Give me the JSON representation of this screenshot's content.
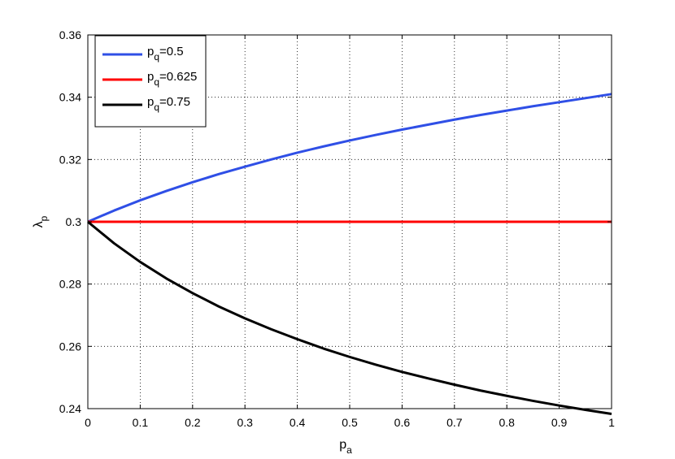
{
  "chart_data": {
    "type": "line",
    "xlabel": {
      "main": "p",
      "sub": "a"
    },
    "ylabel": {
      "main": "λ",
      "sub": "p"
    },
    "xlim": [
      0,
      1
    ],
    "ylim": [
      0.24,
      0.36
    ],
    "x_ticks": [
      "0",
      "0.1",
      "0.2",
      "0.3",
      "0.4",
      "0.5",
      "0.6",
      "0.7",
      "0.8",
      "0.9",
      "1"
    ],
    "y_ticks": [
      "0.24",
      "0.26",
      "0.28",
      "0.3",
      "0.32",
      "0.34",
      "0.36"
    ],
    "grid": true,
    "legend_position": "top-left",
    "x": [
      0,
      0.05,
      0.1,
      0.15,
      0.2,
      0.25,
      0.3,
      0.35,
      0.4,
      0.45,
      0.5,
      0.55,
      0.6,
      0.65,
      0.7,
      0.75,
      0.8,
      0.85,
      0.9,
      0.95,
      1
    ],
    "series": [
      {
        "legend": {
          "main": "p",
          "sub": "q",
          "rest": "=0.5"
        },
        "color": "#2f4fe6",
        "values": [
          0.3,
          0.3036,
          0.3069,
          0.3099,
          0.3127,
          0.3153,
          0.3177,
          0.32,
          0.3222,
          0.3242,
          0.3261,
          0.3279,
          0.3296,
          0.3312,
          0.3328,
          0.3343,
          0.3357,
          0.3371,
          0.3384,
          0.3397,
          0.341
        ]
      },
      {
        "legend": {
          "main": "p",
          "sub": "q",
          "rest": "=0.625"
        },
        "color": "#ff0000",
        "values": [
          0.3,
          0.3,
          0.3,
          0.3,
          0.3,
          0.3,
          0.3,
          0.3,
          0.3,
          0.3,
          0.3,
          0.3,
          0.3,
          0.3,
          0.3,
          0.3,
          0.3,
          0.3,
          0.3,
          0.3,
          0.3
        ]
      },
      {
        "legend": {
          "main": "p",
          "sub": "q",
          "rest": "=0.75"
        },
        "color": "#000000",
        "values": [
          0.3,
          0.2931,
          0.2871,
          0.2818,
          0.2771,
          0.2728,
          0.269,
          0.2655,
          0.2623,
          0.2593,
          0.2566,
          0.2541,
          0.2518,
          0.2497,
          0.2477,
          0.2458,
          0.2441,
          0.2425,
          0.241,
          0.2396,
          0.2383
        ]
      }
    ]
  }
}
